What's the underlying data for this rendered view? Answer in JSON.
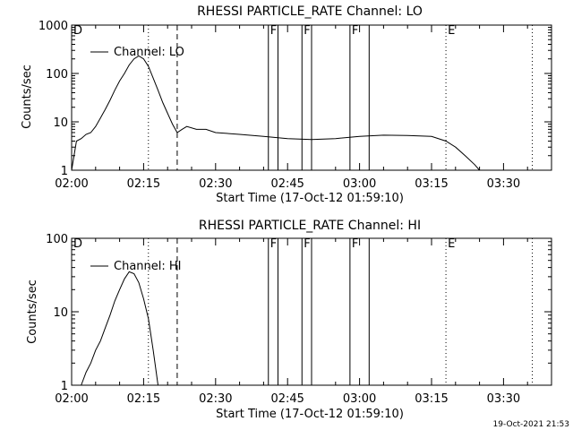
{
  "footer_timestamp": "19-Oct-2021 21:53",
  "chart_data": [
    {
      "type": "line",
      "title": "RHESSI PARTICLE_RATE Channel: LO",
      "xlabel": "Start Time (17-Oct-12 01:59:10)",
      "ylabel": "Counts/sec",
      "yscale": "log",
      "ylim": [
        1,
        1000
      ],
      "xlim": [
        "02:00",
        "03:40"
      ],
      "xticks": [
        "02:00",
        "02:15",
        "02:30",
        "02:45",
        "03:00",
        "03:15",
        "03:30"
      ],
      "yticks": [
        "1",
        "10",
        "100",
        "1000"
      ],
      "legend": "Channel: LO",
      "legend_position": "top-left",
      "markers": [
        {
          "time": "02:00",
          "label": "D",
          "style": "solid"
        },
        {
          "time": "02:16",
          "label": "",
          "style": "dotted"
        },
        {
          "time": "02:22",
          "label": "",
          "style": "dashed"
        },
        {
          "time": "02:41",
          "label": "F",
          "style": "solid"
        },
        {
          "time": "02:43",
          "label": "",
          "style": "solid"
        },
        {
          "time": "02:48",
          "label": "F",
          "style": "solid"
        },
        {
          "time": "02:50",
          "label": "",
          "style": "solid"
        },
        {
          "time": "02:58",
          "label": "F",
          "style": "solid"
        },
        {
          "time": "03:02",
          "label": "",
          "style": "solid"
        },
        {
          "time": "03:18",
          "label": "E",
          "style": "dotted"
        },
        {
          "time": "03:36",
          "label": "",
          "style": "dotted"
        }
      ],
      "series": [
        {
          "points": [
            [
              "02:00",
              1
            ],
            [
              "02:01",
              4
            ],
            [
              "02:02",
              4.5
            ],
            [
              "02:03",
              5.5
            ],
            [
              "02:04",
              6
            ],
            [
              "02:05",
              8
            ],
            [
              "02:06",
              12
            ],
            [
              "02:07",
              18
            ],
            [
              "02:08",
              28
            ],
            [
              "02:09",
              45
            ],
            [
              "02:10",
              70
            ],
            [
              "02:11",
              100
            ],
            [
              "02:12",
              150
            ],
            [
              "02:13",
              200
            ],
            [
              "02:14",
              230
            ],
            [
              "02:15",
              200
            ],
            [
              "02:16",
              140
            ],
            [
              "02:17",
              80
            ],
            [
              "02:18",
              45
            ],
            [
              "02:19",
              25
            ],
            [
              "02:20",
              15
            ],
            [
              "02:21",
              9
            ],
            [
              "02:22",
              6
            ],
            [
              "02:23",
              7
            ],
            [
              "02:24",
              8
            ],
            [
              "02:26",
              7
            ],
            [
              "02:28",
              7
            ],
            [
              "02:30",
              6
            ],
            [
              "02:35",
              5.5
            ],
            [
              "02:40",
              5
            ],
            [
              "02:45",
              4.5
            ],
            [
              "02:50",
              4.3
            ],
            [
              "02:55",
              4.5
            ],
            [
              "03:00",
              5
            ],
            [
              "03:05",
              5.3
            ],
            [
              "03:10",
              5.2
            ],
            [
              "03:15",
              5
            ],
            [
              "03:18",
              4
            ],
            [
              "03:20",
              3
            ],
            [
              "03:22",
              2
            ],
            [
              "03:24",
              1.3
            ],
            [
              "03:25",
              1
            ]
          ]
        }
      ]
    },
    {
      "type": "line",
      "title": "RHESSI PARTICLE_RATE Channel: HI",
      "xlabel": "Start Time (17-Oct-12 01:59:10)",
      "ylabel": "Counts/sec",
      "yscale": "log",
      "ylim": [
        1,
        100
      ],
      "xlim": [
        "02:00",
        "03:40"
      ],
      "xticks": [
        "02:00",
        "02:15",
        "02:30",
        "02:45",
        "03:00",
        "03:15",
        "03:30"
      ],
      "yticks": [
        "1",
        "10",
        "100"
      ],
      "legend": "Channel: HI",
      "legend_position": "top-left",
      "markers": [
        {
          "time": "02:00",
          "label": "D",
          "style": "solid"
        },
        {
          "time": "02:16",
          "label": "",
          "style": "dotted"
        },
        {
          "time": "02:22",
          "label": "",
          "style": "dashed"
        },
        {
          "time": "02:41",
          "label": "F",
          "style": "solid"
        },
        {
          "time": "02:43",
          "label": "",
          "style": "solid"
        },
        {
          "time": "02:48",
          "label": "F",
          "style": "solid"
        },
        {
          "time": "02:50",
          "label": "",
          "style": "solid"
        },
        {
          "time": "02:58",
          "label": "F",
          "style": "solid"
        },
        {
          "time": "03:02",
          "label": "",
          "style": "solid"
        },
        {
          "time": "03:18",
          "label": "E",
          "style": "dotted"
        },
        {
          "time": "03:36",
          "label": "",
          "style": "dotted"
        }
      ],
      "series": [
        {
          "points": [
            [
              "02:02",
              1
            ],
            [
              "02:03",
              1.5
            ],
            [
              "02:04",
              2
            ],
            [
              "02:05",
              3
            ],
            [
              "02:06",
              4
            ],
            [
              "02:07",
              6
            ],
            [
              "02:08",
              9
            ],
            [
              "02:09",
              14
            ],
            [
              "02:10",
              20
            ],
            [
              "02:11",
              28
            ],
            [
              "02:12",
              35
            ],
            [
              "02:13",
              33
            ],
            [
              "02:14",
              25
            ],
            [
              "02:15",
              15
            ],
            [
              "02:16",
              8
            ],
            [
              "02:17",
              3
            ],
            [
              "02:18",
              1
            ]
          ]
        }
      ]
    }
  ]
}
